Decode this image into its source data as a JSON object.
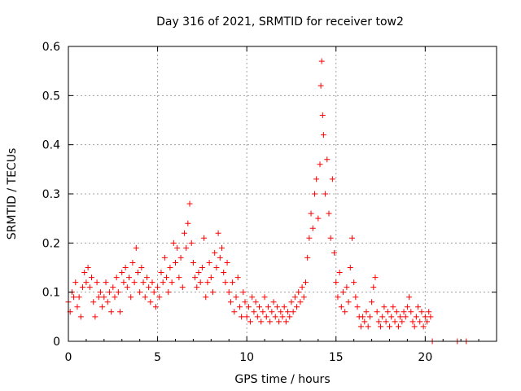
{
  "chart_data": {
    "type": "scatter",
    "title": "Day 316 of 2021, SRMTID for receiver tow2",
    "xlabel": "GPS time / hours",
    "ylabel": "SRMTID / TECUs",
    "xlim": [
      0,
      24
    ],
    "ylim": [
      0,
      0.6
    ],
    "xticks": [
      0,
      5,
      10,
      15,
      20
    ],
    "xtick_labels": [
      "0",
      "5",
      "10",
      "15",
      "20"
    ],
    "yticks": [
      0,
      0.1,
      0.2,
      0.3,
      0.4,
      0.5,
      0.6
    ],
    "ytick_labels": [
      "0",
      "0.1",
      "0.2",
      "0.3",
      "0.4",
      "0.5",
      "0.6"
    ],
    "grid": true,
    "marker": "plus",
    "color": "#ff0000",
    "series": [
      {
        "name": "SRMTID",
        "points": [
          [
            0.0,
            0.08
          ],
          [
            0.1,
            0.06
          ],
          [
            0.2,
            0.1
          ],
          [
            0.3,
            0.09
          ],
          [
            0.4,
            0.12
          ],
          [
            0.5,
            0.07
          ],
          [
            0.6,
            0.09
          ],
          [
            0.7,
            0.05
          ],
          [
            0.8,
            0.11
          ],
          [
            0.9,
            0.14
          ],
          [
            1.0,
            0.12
          ],
          [
            1.1,
            0.15
          ],
          [
            1.2,
            0.11
          ],
          [
            1.3,
            0.13
          ],
          [
            1.4,
            0.08
          ],
          [
            1.5,
            0.05
          ],
          [
            1.6,
            0.12
          ],
          [
            1.7,
            0.09
          ],
          [
            1.8,
            0.1
          ],
          [
            1.9,
            0.07
          ],
          [
            2.0,
            0.09
          ],
          [
            2.1,
            0.12
          ],
          [
            2.2,
            0.08
          ],
          [
            2.3,
            0.1
          ],
          [
            2.4,
            0.06
          ],
          [
            2.5,
            0.11
          ],
          [
            2.6,
            0.09
          ],
          [
            2.7,
            0.13
          ],
          [
            2.8,
            0.1
          ],
          [
            2.9,
            0.06
          ],
          [
            3.0,
            0.14
          ],
          [
            3.1,
            0.12
          ],
          [
            3.2,
            0.15
          ],
          [
            3.3,
            0.11
          ],
          [
            3.4,
            0.13
          ],
          [
            3.5,
            0.09
          ],
          [
            3.6,
            0.16
          ],
          [
            3.7,
            0.12
          ],
          [
            3.8,
            0.19
          ],
          [
            3.9,
            0.14
          ],
          [
            4.0,
            0.1
          ],
          [
            4.1,
            0.15
          ],
          [
            4.2,
            0.12
          ],
          [
            4.3,
            0.09
          ],
          [
            4.4,
            0.13
          ],
          [
            4.5,
            0.11
          ],
          [
            4.6,
            0.08
          ],
          [
            4.7,
            0.12
          ],
          [
            4.8,
            0.1
          ],
          [
            4.9,
            0.07
          ],
          [
            5.0,
            0.11
          ],
          [
            5.1,
            0.09
          ],
          [
            5.2,
            0.14
          ],
          [
            5.3,
            0.12
          ],
          [
            5.4,
            0.17
          ],
          [
            5.5,
            0.13
          ],
          [
            5.6,
            0.1
          ],
          [
            5.7,
            0.15
          ],
          [
            5.8,
            0.12
          ],
          [
            5.9,
            0.2
          ],
          [
            6.0,
            0.16
          ],
          [
            6.1,
            0.19
          ],
          [
            6.2,
            0.13
          ],
          [
            6.3,
            0.17
          ],
          [
            6.4,
            0.11
          ],
          [
            6.5,
            0.22
          ],
          [
            6.6,
            0.19
          ],
          [
            6.7,
            0.24
          ],
          [
            6.8,
            0.28
          ],
          [
            6.9,
            0.2
          ],
          [
            7.0,
            0.16
          ],
          [
            7.1,
            0.13
          ],
          [
            7.2,
            0.11
          ],
          [
            7.3,
            0.14
          ],
          [
            7.4,
            0.12
          ],
          [
            7.5,
            0.15
          ],
          [
            7.6,
            0.21
          ],
          [
            7.7,
            0.09
          ],
          [
            7.8,
            0.12
          ],
          [
            7.9,
            0.16
          ],
          [
            8.0,
            0.13
          ],
          [
            8.1,
            0.1
          ],
          [
            8.2,
            0.18
          ],
          [
            8.3,
            0.15
          ],
          [
            8.4,
            0.22
          ],
          [
            8.5,
            0.17
          ],
          [
            8.6,
            0.19
          ],
          [
            8.7,
            0.14
          ],
          [
            8.8,
            0.12
          ],
          [
            8.9,
            0.16
          ],
          [
            9.0,
            0.1
          ],
          [
            9.1,
            0.08
          ],
          [
            9.2,
            0.12
          ],
          [
            9.3,
            0.06
          ],
          [
            9.4,
            0.09
          ],
          [
            9.5,
            0.13
          ],
          [
            9.6,
            0.07
          ],
          [
            9.7,
            0.05
          ],
          [
            9.8,
            0.1
          ],
          [
            9.9,
            0.08
          ],
          [
            10.0,
            0.05
          ],
          [
            10.1,
            0.07
          ],
          [
            10.2,
            0.04
          ],
          [
            10.3,
            0.09
          ],
          [
            10.4,
            0.06
          ],
          [
            10.5,
            0.08
          ],
          [
            10.6,
            0.05
          ],
          [
            10.7,
            0.07
          ],
          [
            10.8,
            0.04
          ],
          [
            10.9,
            0.06
          ],
          [
            11.0,
            0.09
          ],
          [
            11.1,
            0.05
          ],
          [
            11.2,
            0.07
          ],
          [
            11.3,
            0.04
          ],
          [
            11.4,
            0.06
          ],
          [
            11.5,
            0.08
          ],
          [
            11.6,
            0.05
          ],
          [
            11.7,
            0.07
          ],
          [
            11.8,
            0.04
          ],
          [
            11.9,
            0.06
          ],
          [
            12.0,
            0.05
          ],
          [
            12.1,
            0.07
          ],
          [
            12.2,
            0.04
          ],
          [
            12.3,
            0.06
          ],
          [
            12.4,
            0.05
          ],
          [
            12.5,
            0.08
          ],
          [
            12.6,
            0.06
          ],
          [
            12.7,
            0.09
          ],
          [
            12.8,
            0.07
          ],
          [
            12.9,
            0.1
          ],
          [
            13.0,
            0.08
          ],
          [
            13.1,
            0.11
          ],
          [
            13.2,
            0.09
          ],
          [
            13.3,
            0.12
          ],
          [
            13.4,
            0.17
          ],
          [
            13.5,
            0.21
          ],
          [
            13.6,
            0.26
          ],
          [
            13.7,
            0.23
          ],
          [
            13.8,
            0.3
          ],
          [
            13.9,
            0.33
          ],
          [
            14.0,
            0.25
          ],
          [
            14.1,
            0.36
          ],
          [
            14.15,
            0.52
          ],
          [
            14.2,
            0.57
          ],
          [
            14.25,
            0.46
          ],
          [
            14.3,
            0.42
          ],
          [
            14.4,
            0.3
          ],
          [
            14.5,
            0.37
          ],
          [
            14.6,
            0.26
          ],
          [
            14.7,
            0.21
          ],
          [
            14.8,
            0.33
          ],
          [
            14.9,
            0.18
          ],
          [
            15.0,
            0.12
          ],
          [
            15.1,
            0.09
          ],
          [
            15.2,
            0.14
          ],
          [
            15.3,
            0.07
          ],
          [
            15.4,
            0.1
          ],
          [
            15.5,
            0.06
          ],
          [
            15.6,
            0.11
          ],
          [
            15.7,
            0.08
          ],
          [
            15.8,
            0.15
          ],
          [
            15.9,
            0.21
          ],
          [
            16.0,
            0.12
          ],
          [
            16.1,
            0.09
          ],
          [
            16.2,
            0.07
          ],
          [
            16.3,
            0.05
          ],
          [
            16.4,
            0.03
          ],
          [
            16.5,
            0.05
          ],
          [
            16.6,
            0.04
          ],
          [
            16.7,
            0.06
          ],
          [
            16.8,
            0.03
          ],
          [
            16.9,
            0.05
          ],
          [
            17.0,
            0.08
          ],
          [
            17.1,
            0.11
          ],
          [
            17.2,
            0.13
          ],
          [
            17.3,
            0.06
          ],
          [
            17.4,
            0.04
          ],
          [
            17.5,
            0.03
          ],
          [
            17.6,
            0.05
          ],
          [
            17.7,
            0.07
          ],
          [
            17.8,
            0.04
          ],
          [
            17.9,
            0.06
          ],
          [
            18.0,
            0.03
          ],
          [
            18.1,
            0.05
          ],
          [
            18.2,
            0.07
          ],
          [
            18.3,
            0.04
          ],
          [
            18.4,
            0.06
          ],
          [
            18.5,
            0.03
          ],
          [
            18.6,
            0.05
          ],
          [
            18.7,
            0.04
          ],
          [
            18.8,
            0.06
          ],
          [
            18.9,
            0.05
          ],
          [
            19.0,
            0.07
          ],
          [
            19.1,
            0.09
          ],
          [
            19.2,
            0.06
          ],
          [
            19.3,
            0.04
          ],
          [
            19.4,
            0.03
          ],
          [
            19.5,
            0.05
          ],
          [
            19.6,
            0.07
          ],
          [
            19.7,
            0.04
          ],
          [
            19.8,
            0.06
          ],
          [
            19.9,
            0.03
          ],
          [
            20.0,
            0.05
          ],
          [
            20.1,
            0.04
          ],
          [
            20.2,
            0.06
          ],
          [
            20.3,
            0.05
          ],
          [
            20.4,
            0.0
          ],
          [
            21.8,
            0.0
          ],
          [
            22.3,
            0.0
          ]
        ]
      }
    ]
  }
}
